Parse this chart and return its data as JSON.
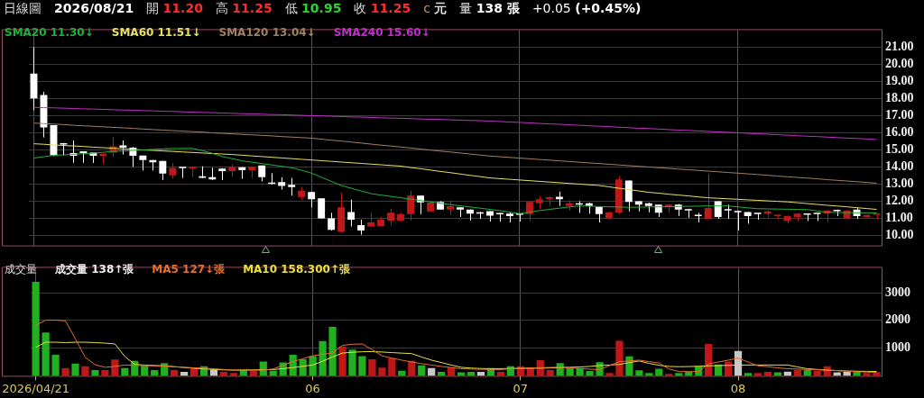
{
  "chart_data": [
    {
      "type": "candlestick",
      "annotations": [
        "日線圖",
        "2026/08/21",
        "開 11.20",
        "高 11.25",
        "低 10.95",
        "收 11.25",
        "c 元",
        "量 138 張",
        "+0.05 (+0.45%)"
      ],
      "categories": [
        "2026/04/21",
        null,
        null,
        null,
        null,
        null,
        null,
        null,
        null,
        null,
        null,
        null,
        null,
        null,
        null,
        null,
        null,
        null,
        null,
        null,
        null,
        null,
        null,
        null,
        null,
        null,
        null,
        null,
        "06",
        null,
        null,
        null,
        null,
        null,
        null,
        null,
        null,
        null,
        null,
        null,
        null,
        null,
        null,
        null,
        null,
        null,
        null,
        null,
        null,
        "07",
        null,
        null,
        null,
        null,
        null,
        null,
        null,
        null,
        null,
        null,
        null,
        null,
        null,
        null,
        null,
        null,
        null,
        null,
        null,
        null,
        null,
        "08",
        null,
        null,
        null,
        null,
        null,
        null,
        null,
        null,
        null,
        null,
        null,
        null,
        null,
        null
      ],
      "tick_labels": "y",
      "ylim": [
        9.4,
        22
      ],
      "yticks": [
        {
          "value": 10,
          "label": "10.00"
        },
        {
          "value": 11,
          "label": "11.00"
        },
        {
          "value": 12,
          "label": "12.00"
        },
        {
          "value": 13,
          "label": "13.00"
        },
        {
          "value": 14,
          "label": "14.00"
        },
        {
          "value": 15,
          "label": "15.00"
        },
        {
          "value": 16,
          "label": "16.00"
        },
        {
          "value": 17,
          "label": "17.00"
        },
        {
          "value": 18,
          "label": "18.00"
        },
        {
          "value": 19,
          "label": "19.00"
        },
        {
          "value": 20,
          "label": "20.00"
        },
        {
          "value": 21,
          "label": "21.00"
        }
      ],
      "grid": true,
      "legend": "top left",
      "marker": "none",
      "series": [
        {
          "ohlc": [
            [
              19.45,
              21.0,
              17.32,
              18.0
            ],
            [
              18.2,
              18.39,
              15.72,
              16.31
            ],
            [
              16.44,
              16.44,
              14.62,
              14.67
            ],
            [
              15.35,
              15.4,
              14.67,
              15.3
            ],
            [
              14.8,
              15.54,
              14.23,
              14.64
            ],
            [
              14.91,
              14.91,
              14.23,
              14.8
            ],
            [
              14.83,
              14.83,
              14.23,
              14.64
            ],
            [
              14.64,
              14.8,
              14.15,
              14.77
            ],
            [
              14.83,
              15.72,
              14.6,
              15.2
            ],
            [
              15.25,
              15.54,
              14.72,
              15.12
            ],
            [
              15.12,
              15.16,
              14.0,
              14.64
            ],
            [
              14.66,
              14.66,
              13.79,
              14.4
            ],
            [
              14.4,
              14.4,
              13.79,
              14.27
            ],
            [
              14.35,
              14.35,
              13.23,
              13.6
            ],
            [
              13.5,
              14.23,
              13.3,
              13.94
            ],
            [
              13.96,
              13.96,
              13.35,
              13.92
            ],
            [
              13.9,
              14.03,
              13.39,
              14.0
            ],
            [
              13.45,
              14.03,
              13.33,
              13.35
            ],
            [
              13.4,
              13.95,
              13.23,
              13.27
            ],
            [
              13.9,
              13.92,
              13.23,
              13.75
            ],
            [
              13.75,
              14.15,
              13.43,
              14.0
            ],
            [
              13.97,
              13.98,
              13.3,
              13.8
            ],
            [
              13.8,
              14.02,
              13.35,
              14.0
            ],
            [
              14.08,
              14.08,
              13.15,
              13.39
            ],
            [
              13.08,
              13.63,
              12.96,
              13.0
            ],
            [
              13.1,
              13.39,
              12.67,
              12.88
            ],
            [
              12.95,
              13.35,
              12.32,
              12.82
            ],
            [
              12.24,
              12.83,
              12.05,
              12.59
            ],
            [
              12.53,
              12.55,
              11.63,
              12.11
            ],
            [
              12.16,
              12.16,
              10.96,
              10.99
            ],
            [
              10.99,
              11.31,
              10.27,
              10.32
            ],
            [
              10.19,
              12.48,
              10.14,
              11.63
            ],
            [
              11.36,
              12.08,
              10.51,
              10.91
            ],
            [
              10.59,
              10.91,
              10.03,
              10.27
            ],
            [
              10.51,
              11.31,
              10.48,
              10.75
            ],
            [
              10.54,
              11.07,
              10.51,
              10.91
            ],
            [
              10.86,
              11.55,
              10.58,
              11.31
            ],
            [
              10.86,
              11.31,
              10.8,
              11.23
            ],
            [
              11.23,
              12.59,
              10.86,
              12.31
            ],
            [
              12.31,
              12.31,
              11.23,
              11.92
            ],
            [
              11.39,
              11.95,
              11.39,
              11.91
            ],
            [
              11.95,
              11.99,
              11.5,
              11.5
            ],
            [
              11.5,
              12.02,
              11.18,
              11.7
            ],
            [
              11.63,
              11.63,
              11.07,
              11.5
            ],
            [
              11.5,
              11.5,
              10.86,
              11.26
            ],
            [
              11.34,
              11.36,
              10.96,
              11.26
            ],
            [
              11.41,
              11.41,
              10.8,
              11.15
            ],
            [
              11.3,
              11.3,
              10.8,
              11.22
            ],
            [
              11.26,
              11.34,
              10.75,
              11.12
            ],
            [
              11.25,
              11.28,
              10.8,
              11.2
            ],
            [
              11.23,
              11.99,
              10.83,
              11.95
            ],
            [
              11.87,
              12.27,
              11.55,
              12.1
            ],
            [
              12.1,
              12.27,
              11.71,
              12.23
            ],
            [
              12.25,
              12.55,
              11.71,
              12.1
            ],
            [
              11.71,
              12.03,
              11.44,
              11.87
            ],
            [
              11.87,
              11.99,
              11.31,
              11.79
            ],
            [
              11.87,
              11.9,
              11.26,
              11.71
            ],
            [
              11.66,
              11.66,
              10.75,
              11.23
            ],
            [
              10.99,
              11.37,
              10.91,
              11.34
            ],
            [
              11.31,
              13.47,
              11.23,
              13.27
            ],
            [
              13.2,
              13.2,
              11.39,
              11.95
            ],
            [
              11.99,
              11.99,
              11.39,
              11.79
            ],
            [
              11.87,
              11.9,
              11.34,
              11.71
            ],
            [
              11.79,
              11.79,
              11.07,
              11.31
            ],
            [
              11.66,
              11.82,
              11.31,
              11.79
            ],
            [
              11.79,
              11.82,
              11.12,
              11.5
            ],
            [
              11.5,
              11.55,
              11.02,
              11.44
            ],
            [
              11.15,
              11.31,
              10.75,
              11.12
            ],
            [
              10.96,
              13.59,
              10.96,
              11.59
            ],
            [
              11.99,
              11.99,
              10.96,
              11.07
            ],
            [
              11.5,
              11.79,
              10.96,
              11.44
            ],
            [
              11.39,
              11.44,
              10.27,
              11.34
            ],
            [
              11.36,
              11.36,
              10.67,
              11.12
            ],
            [
              11.28,
              11.3,
              10.91,
              11.23
            ],
            [
              11.26,
              11.44,
              11.02,
              11.39
            ],
            [
              11.12,
              11.23,
              10.96,
              11.18
            ],
            [
              10.83,
              11.18,
              10.67,
              11.12
            ],
            [
              11.07,
              11.31,
              10.83,
              11.26
            ],
            [
              11.26,
              11.28,
              10.83,
              11.2
            ],
            [
              11.28,
              11.31,
              10.83,
              11.23
            ],
            [
              11.28,
              11.47,
              10.8,
              11.44
            ],
            [
              11.47,
              11.5,
              11.12,
              11.41
            ],
            [
              10.99,
              11.47,
              10.96,
              11.44
            ],
            [
              11.5,
              11.6,
              10.96,
              11.12
            ],
            [
              11.07,
              11.23,
              10.99,
              11.18
            ],
            [
              11.2,
              11.25,
              10.95,
              11.25
            ]
          ],
          "colors": [
            "#ffffff",
            "#ffffff",
            "#ffffff",
            "#ffffff",
            "#ffffff",
            "#ffffff",
            "#ffffff",
            "#c01818",
            "#c01818",
            "#ffffff",
            "#ffffff",
            "#ffffff",
            "#ffffff",
            "#ffffff",
            "#c01818",
            "#ffffff",
            "#c01818",
            "#ffffff",
            "#ffffff",
            "#ffffff",
            "#c01818",
            "#ffffff",
            "#c01818",
            "#ffffff",
            "#ffffff",
            "#ffffff",
            "#ffffff",
            "#c01818",
            "#ffffff",
            "#ffffff",
            "#ffffff",
            "#c01818",
            "#ffffff",
            "#ffffff",
            "#c01818",
            "#c01818",
            "#c01818",
            "#c01818",
            "#c01818",
            "#ffffff",
            "#c01818",
            "#ffffff",
            "#c01818",
            "#ffffff",
            "#ffffff",
            "#ffffff",
            "#ffffff",
            "#ffffff",
            "#ffffff",
            "#ffffff",
            "#c01818",
            "#c01818",
            "#c01818",
            "#ffffff",
            "#c01818",
            "#ffffff",
            "#ffffff",
            "#ffffff",
            "#c01818",
            "#c01818",
            "#ffffff",
            "#ffffff",
            "#ffffff",
            "#ffffff",
            "#c01818",
            "#ffffff",
            "#ffffff",
            "#ffffff",
            "#c01818",
            "#ffffff",
            "#ffffff",
            "#ffffff",
            "#ffffff",
            "#ffffff",
            "#c01818",
            "#c01818",
            "#c01818",
            "#c01818",
            "#ffffff",
            "#ffffff",
            "#c01818",
            "#ffffff",
            "#c01818",
            "#ffffff",
            "#c01818",
            "#c01818"
          ]
        },
        {
          "type": "line",
          "name": "SMA20 11.30↓",
          "color": "#22b03a",
          "values": [
            14.51,
            14.59,
            14.67,
            14.7,
            14.73,
            14.77,
            14.8,
            14.85,
            14.9,
            14.93,
            14.96,
            14.99,
            15.02,
            15.05,
            15.07,
            15.08,
            15.08,
            14.95,
            14.79,
            14.6,
            14.48,
            14.35,
            14.27,
            14.19,
            14.11,
            14.03,
            13.95,
            13.8,
            13.63,
            13.39,
            13.15,
            12.91,
            12.75,
            12.59,
            12.43,
            12.35,
            12.27,
            12.19,
            12.11,
            12.03,
            11.95,
            11.87,
            11.79,
            11.72,
            11.65,
            11.58,
            11.51,
            11.44,
            11.35,
            11.26,
            11.35,
            11.44,
            11.51,
            11.58,
            11.65,
            11.71,
            11.7,
            11.68,
            11.66,
            11.65,
            11.63,
            11.64,
            11.65,
            11.66,
            11.67,
            11.68,
            11.69,
            11.7,
            11.71,
            11.71,
            11.71,
            11.66,
            11.6,
            11.55,
            11.54,
            11.53,
            11.52,
            11.51,
            11.5,
            11.42,
            11.34,
            11.33,
            11.32,
            11.31,
            11.31,
            11.3
          ]
        },
        {
          "type": "line",
          "name": "SMA60 11.51↓",
          "color": "#e8e060",
          "values": [
            15.35,
            15.32,
            15.28,
            15.25,
            15.22,
            15.19,
            15.15,
            15.12,
            15.09,
            15.05,
            15.02,
            14.99,
            14.96,
            14.93,
            14.9,
            14.87,
            14.84,
            14.81,
            14.78,
            14.75,
            14.72,
            14.68,
            14.64,
            14.6,
            14.56,
            14.52,
            14.48,
            14.44,
            14.4,
            14.36,
            14.32,
            14.28,
            14.24,
            14.2,
            14.16,
            14.12,
            14.08,
            14.04,
            13.96,
            13.89,
            13.81,
            13.73,
            13.66,
            13.58,
            13.5,
            13.43,
            13.35,
            13.31,
            13.27,
            13.23,
            13.19,
            13.15,
            13.11,
            13.07,
            13.03,
            12.99,
            12.95,
            12.91,
            12.83,
            12.75,
            12.67,
            12.59,
            12.51,
            12.46,
            12.4,
            12.35,
            12.3,
            12.24,
            12.19,
            12.16,
            12.13,
            12.1,
            12.07,
            12.04,
            12.01,
            11.98,
            11.95,
            11.9,
            11.85,
            11.8,
            11.75,
            11.71,
            11.66,
            11.61,
            11.56,
            11.51
          ]
        },
        {
          "type": "line",
          "name": "SMA120 13.04↓",
          "color": "#a08060",
          "values": [
            16.56,
            16.53,
            16.5,
            16.47,
            16.43,
            16.4,
            16.37,
            16.34,
            16.31,
            16.28,
            16.25,
            16.21,
            16.18,
            16.15,
            16.12,
            16.09,
            16.06,
            16.03,
            15.99,
            15.96,
            15.93,
            15.9,
            15.87,
            15.84,
            15.81,
            15.77,
            15.74,
            15.71,
            15.68,
            15.62,
            15.56,
            15.51,
            15.45,
            15.39,
            15.33,
            15.27,
            15.22,
            15.16,
            15.1,
            15.04,
            14.98,
            14.92,
            14.87,
            14.81,
            14.75,
            14.69,
            14.63,
            14.59,
            14.55,
            14.51,
            14.47,
            14.43,
            14.39,
            14.35,
            14.31,
            14.27,
            14.23,
            14.19,
            14.15,
            14.11,
            14.07,
            14.03,
            13.99,
            13.95,
            13.91,
            13.87,
            13.83,
            13.79,
            13.75,
            13.71,
            13.67,
            13.63,
            13.59,
            13.55,
            13.51,
            13.46,
            13.42,
            13.38,
            13.34,
            13.3,
            13.25,
            13.21,
            13.17,
            13.13,
            13.09,
            13.04
          ]
        },
        {
          "type": "line",
          "name": "SMA240 15.60↓",
          "color": "#c030c8",
          "values": [
            17.48,
            17.46,
            17.45,
            17.43,
            17.41,
            17.39,
            17.38,
            17.36,
            17.34,
            17.32,
            17.31,
            17.29,
            17.27,
            17.25,
            17.24,
            17.22,
            17.2,
            17.18,
            17.17,
            17.15,
            17.13,
            17.11,
            17.1,
            17.08,
            17.06,
            17.05,
            17.03,
            17.01,
            16.99,
            16.98,
            16.96,
            16.94,
            16.92,
            16.91,
            16.89,
            16.87,
            16.85,
            16.84,
            16.82,
            16.8,
            16.78,
            16.77,
            16.75,
            16.73,
            16.71,
            16.7,
            16.68,
            16.65,
            16.62,
            16.6,
            16.57,
            16.54,
            16.51,
            16.49,
            16.46,
            16.43,
            16.4,
            16.38,
            16.35,
            16.32,
            16.29,
            16.26,
            16.24,
            16.21,
            16.18,
            16.15,
            16.13,
            16.1,
            16.07,
            16.04,
            16.02,
            15.99,
            15.96,
            15.93,
            15.91,
            15.88,
            15.85,
            15.82,
            15.79,
            15.77,
            15.74,
            15.71,
            15.68,
            15.66,
            15.63,
            15.6
          ]
        }
      ]
    },
    {
      "type": "bar",
      "title": "成交量",
      "categories": [
        "2026/04/21",
        null,
        null,
        null,
        null,
        null,
        null,
        null,
        null,
        null,
        null,
        null,
        null,
        null,
        null,
        null,
        null,
        null,
        null,
        null,
        null,
        null,
        null,
        null,
        null,
        null,
        null,
        null,
        "06",
        null,
        null,
        null,
        null,
        null,
        null,
        null,
        null,
        null,
        null,
        null,
        null,
        null,
        null,
        null,
        null,
        null,
        null,
        null,
        null,
        "07",
        null,
        null,
        null,
        null,
        null,
        null,
        null,
        null,
        null,
        null,
        null,
        null,
        null,
        null,
        null,
        null,
        null,
        null,
        null,
        null,
        null,
        "08",
        null,
        null,
        null,
        null,
        null,
        null,
        null,
        null,
        null,
        null,
        null,
        null,
        null,
        null
      ],
      "ylim": [
        0,
        3900
      ],
      "yticks": [
        1000,
        2000,
        3000
      ],
      "grid": true,
      "legend": "top left",
      "marker": "none",
      "series": [
        {
          "name": "成交量 138↑張",
          "values": [
            3396,
            1564,
            761,
            278,
            442,
            350,
            206,
            206,
            587,
            278,
            545,
            360,
            206,
            463,
            206,
            144,
            257,
            350,
            226,
            144,
            103,
            206,
            185,
            515,
            185,
            484,
            761,
            597,
            710,
            1255,
            1770,
            1060,
            947,
            710,
            597,
            298,
            638,
            185,
            545,
            381,
            278,
            144,
            309,
            123,
            144,
            144,
            278,
            144,
            350,
            350,
            309,
            566,
            206,
            463,
            278,
            278,
            175,
            494,
            103,
            1266,
            700,
            196,
            103,
            257,
            72,
            103,
            144,
            350,
            1152,
            412,
            515,
            895,
            103,
            103,
            144,
            123,
            154,
            216,
            216,
            175,
            350,
            123,
            144,
            175,
            103,
            138
          ],
          "colors": [
            "#20b020",
            "#20b020",
            "#20b020",
            "#c01818",
            "#20b020",
            "#c01818",
            "#20b020",
            "#c01818",
            "#c01818",
            "#20b020",
            "#20b020",
            "#20b020",
            "#20b020",
            "#20b020",
            "#c01818",
            "#c8c8c8",
            "#c01818",
            "#20b020",
            "#c8c8c8",
            "#c01818",
            "#c01818",
            "#20b020",
            "#c01818",
            "#20b020",
            "#20b020",
            "#20b020",
            "#20b020",
            "#20b020",
            "#20b020",
            "#20b020",
            "#20b020",
            "#c01818",
            "#20b020",
            "#20b020",
            "#c01818",
            "#c01818",
            "#c01818",
            "#20b020",
            "#c01818",
            "#20b020",
            "#c8c8c8",
            "#20b020",
            "#c01818",
            "#20b020",
            "#20b020",
            "#c8c8c8",
            "#20b020",
            "#c01818",
            "#20b020",
            "#c01818",
            "#c01818",
            "#c01818",
            "#c01818",
            "#20b020",
            "#20b020",
            "#20b020",
            "#20b020",
            "#20b020",
            "#c01818",
            "#c01818",
            "#20b020",
            "#20b020",
            "#20b020",
            "#20b020",
            "#c01818",
            "#20b020",
            "#20b020",
            "#20b020",
            "#c01818",
            "#20b020",
            "#c01818",
            "#c8c8c8",
            "#20b020",
            "#c01818",
            "#c01818",
            "#20b020",
            "#c8c8c8",
            "#c01818",
            "#20b020",
            "#c01818",
            "#c01818",
            "#c8c8c8",
            "#c8c8c8",
            "#20b020",
            "#c01818",
            "#c01818"
          ]
        },
        {
          "type": "line",
          "name": "MA5 127↓張",
          "color": "#e07030",
          "values": [
            1832,
            2006,
            2010,
            1986,
            1338,
            669,
            400,
            309,
            340,
            391,
            380,
            370,
            360,
            350,
            330,
            310,
            290,
            278,
            255,
            230,
            206,
            206,
            206,
            206,
            250,
            380,
            515,
            620,
            720,
            780,
            823,
            1101,
            1140,
            1152,
            950,
            720,
            640,
            566,
            500,
            440,
            391,
            340,
            300,
            257,
            245,
            235,
            230,
            226,
            257,
            270,
            280,
            295,
            305,
            309,
            290,
            260,
            240,
            226,
            370,
            515,
            540,
            566,
            515,
            463,
            250,
            154,
            154,
            154,
            432,
            500,
            566,
            638,
            500,
            360,
            330,
            290,
            257,
            245,
            230,
            218,
            206,
            190,
            170,
            150,
            135,
            127
          ]
        },
        {
          "type": "line",
          "name": "MA10 158.300↑張",
          "color": "#e8e040",
          "values": [
            1029,
            1214,
            1214,
            1200,
            1214,
            1214,
            1200,
            1180,
            1152,
            700,
            412,
            390,
            375,
            360,
            330,
            300,
            270,
            250,
            230,
            215,
            206,
            210,
            216,
            220,
            226,
            260,
            300,
            345,
            391,
            530,
            680,
            823,
            850,
            870,
            875,
            860,
            840,
            820,
            803,
            680,
            566,
            480,
            390,
            309,
            280,
            265,
            257,
            260,
            265,
            270,
            275,
            278,
            285,
            300,
            310,
            320,
            340,
            370,
            390,
            412,
            480,
            535,
            450,
            380,
            340,
            329,
            335,
            345,
            360,
            370,
            380,
            391,
            391,
            391,
            391,
            391,
            391,
            320,
            257,
            230,
            205,
            190,
            175,
            168,
            162,
            158.3
          ]
        }
      ]
    }
  ]
}
